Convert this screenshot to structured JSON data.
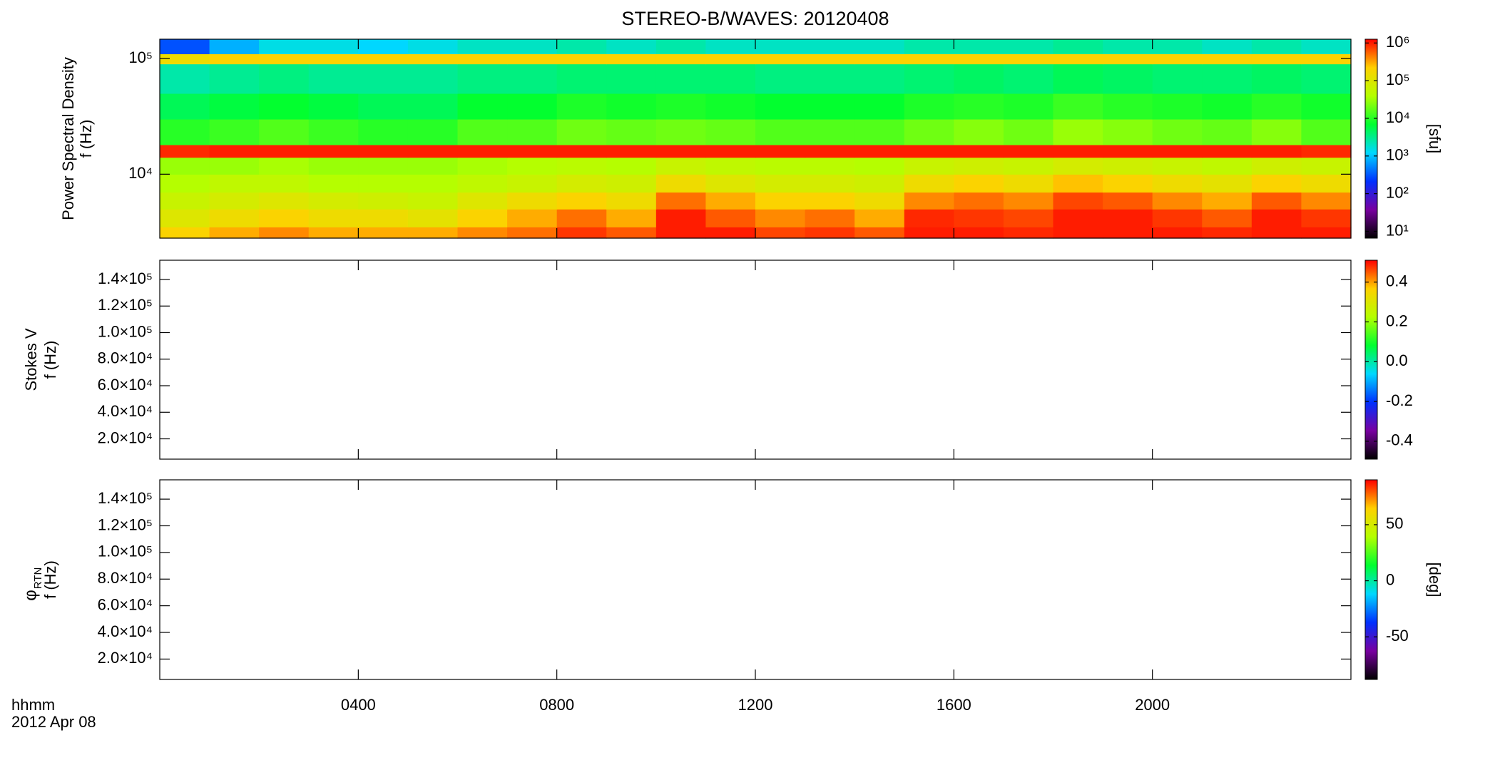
{
  "chart_data": [
    {
      "type": "heatmap",
      "title": "STEREO-B/WAVES: 20120408",
      "quantity": "Power Spectral Density",
      "ylabel": "f (Hz)",
      "colorbar_label": "[sfu]",
      "xlim": [
        0,
        24
      ],
      "ylim": [
        2800,
        147000
      ],
      "ylog": true,
      "yticks": [
        {
          "value": 10000,
          "label": "10⁴"
        },
        {
          "value": 100000,
          "label": "10⁵"
        }
      ],
      "zlim": [
        6.6,
        1260000
      ],
      "zlog": true,
      "zticks": [
        {
          "value": 10,
          "label": "10¹"
        },
        {
          "value": 100,
          "label": "10²"
        },
        {
          "value": 1000,
          "label": "10³"
        },
        {
          "value": 10000,
          "label": "10⁴"
        },
        {
          "value": 100000,
          "label": "10⁵"
        },
        {
          "value": 1000000,
          "label": "10⁶"
        }
      ],
      "colorscale": [
        "#000000",
        "#7800a0",
        "#0030ff",
        "#00d8ff",
        "#00ff30",
        "#b4ff00",
        "#ffd000",
        "#ff0000"
      ],
      "xbins": [
        0,
        1,
        2,
        3,
        4,
        5,
        6,
        7,
        8,
        9,
        10,
        11,
        12,
        13,
        14,
        15,
        16,
        17,
        18,
        19,
        20,
        21,
        22,
        23,
        24
      ],
      "ybins": [
        2800,
        3500,
        5000,
        7000,
        10000,
        14000,
        18000,
        30000,
        50000,
        90000,
        110000,
        147000
      ],
      "z": [
        [
          200000,
          300000,
          400000,
          300000,
          300000,
          300000,
          400000,
          500000,
          800000,
          600000,
          1000000,
          1000000,
          700000,
          800000,
          600000,
          1000000,
          1000000,
          900000,
          1000000,
          1000000,
          1000000,
          900000,
          1000000,
          1000000
        ],
        [
          100000,
          150000,
          200000,
          150000,
          150000,
          120000,
          200000,
          300000,
          500000,
          300000,
          1000000,
          600000,
          400000,
          500000,
          300000,
          900000,
          800000,
          700000,
          1000000,
          1000000,
          800000,
          600000,
          1000000,
          800000
        ],
        [
          60000,
          80000,
          100000,
          80000,
          70000,
          60000,
          100000,
          150000,
          200000,
          150000,
          500000,
          300000,
          200000,
          200000,
          150000,
          400000,
          500000,
          400000,
          700000,
          600000,
          400000,
          300000,
          600000,
          400000
        ],
        [
          40000,
          50000,
          50000,
          40000,
          40000,
          40000,
          50000,
          60000,
          80000,
          70000,
          150000,
          100000,
          80000,
          80000,
          70000,
          150000,
          200000,
          150000,
          250000,
          200000,
          150000,
          120000,
          200000,
          150000
        ],
        [
          30000,
          30000,
          35000,
          30000,
          30000,
          30000,
          35000,
          40000,
          45000,
          40000,
          60000,
          50000,
          45000,
          45000,
          40000,
          60000,
          70000,
          60000,
          80000,
          70000,
          60000,
          50000,
          70000,
          60000
        ],
        [
          900000,
          1000000,
          1000000,
          1000000,
          1000000,
          1000000,
          1000000,
          1000000,
          1000000,
          1000000,
          1000000,
          1000000,
          1000000,
          1000000,
          1000000,
          1000000,
          1000000,
          1000000,
          1000000,
          1000000,
          1000000,
          1000000,
          1000000,
          900000
        ],
        [
          10000,
          12000,
          15000,
          12000,
          10000,
          10000,
          15000,
          15000,
          20000,
          18000,
          20000,
          18000,
          15000,
          15000,
          15000,
          20000,
          25000,
          20000,
          30000,
          25000,
          20000,
          18000,
          25000,
          15000
        ],
        [
          5000,
          6000,
          7000,
          6000,
          5000,
          5000,
          7000,
          7000,
          9000,
          8000,
          9000,
          8000,
          7000,
          7000,
          7000,
          9000,
          10000,
          9000,
          12000,
          10000,
          9000,
          8000,
          10000,
          8000
        ],
        [
          2500,
          3000,
          3500,
          3000,
          3000,
          3000,
          3500,
          3500,
          4000,
          4000,
          4000,
          4000,
          3500,
          3500,
          3500,
          4000,
          4500,
          4000,
          5000,
          4500,
          4000,
          4000,
          4500,
          4000
        ],
        [
          150000,
          200000,
          200000,
          200000,
          200000,
          200000,
          200000,
          200000,
          200000,
          200000,
          200000,
          200000,
          200000,
          200000,
          200000,
          200000,
          200000,
          200000,
          200000,
          200000,
          200000,
          200000,
          200000,
          200000
        ],
        [
          300,
          800,
          1500,
          1500,
          1200,
          1500,
          2000,
          2000,
          2500,
          2000,
          2500,
          2000,
          2000,
          2000,
          2000,
          2500,
          2500,
          2500,
          3000,
          2500,
          2500,
          2000,
          2500,
          2000
        ]
      ]
    },
    {
      "type": "heatmap",
      "quantity": "Stokes V",
      "ylabel": "f (Hz)",
      "xlim": [
        0,
        24
      ],
      "ylim": [
        4700,
        154500
      ],
      "yticks": [
        {
          "value": 20000,
          "label": "2.0×10⁴"
        },
        {
          "value": 40000,
          "label": "4.0×10⁴"
        },
        {
          "value": 60000,
          "label": "6.0×10⁴"
        },
        {
          "value": 80000,
          "label": "8.0×10⁴"
        },
        {
          "value": 100000,
          "label": "1.0×10⁵"
        },
        {
          "value": 120000,
          "label": "1.2×10⁵"
        },
        {
          "value": 140000,
          "label": "1.4×10⁵"
        }
      ],
      "zlim": [
        -0.49,
        0.51
      ],
      "zticks": [
        -0.4,
        -0.2,
        {
          "value": 0,
          "label": "0.0"
        },
        0.2,
        0.4
      ],
      "colorscale": [
        "#000000",
        "#7800a0",
        "#0030ff",
        "#00d8ff",
        "#00ff30",
        "#b4ff00",
        "#ffd000",
        "#ff0000"
      ]
    },
    {
      "type": "heatmap",
      "quantity": {
        "symbol": "φ",
        "subscript": "RTN"
      },
      "ylabel": "f (Hz)",
      "colorbar_label": "[deg]",
      "xlim": [
        0,
        24
      ],
      "ylim": [
        4700,
        154500
      ],
      "yticks": [
        {
          "value": 20000,
          "label": "2.0×10⁴"
        },
        {
          "value": 40000,
          "label": "4.0×10⁴"
        },
        {
          "value": 60000,
          "label": "6.0×10⁴"
        },
        {
          "value": 80000,
          "label": "8.0×10⁴"
        },
        {
          "value": 100000,
          "label": "1.0×10⁵"
        },
        {
          "value": 120000,
          "label": "1.2×10⁵"
        },
        {
          "value": 140000,
          "label": "1.4×10⁵"
        }
      ],
      "zlim": [
        -88,
        90
      ],
      "zticks": [
        -50,
        0,
        50
      ],
      "colorscale": [
        "#000000",
        "#7800a0",
        "#0030ff",
        "#00d8ff",
        "#00ff30",
        "#b4ff00",
        "#ffd000",
        "#ff0000"
      ],
      "xticks": [
        {
          "value": 4,
          "label": "0400"
        },
        {
          "value": 8,
          "label": "0800"
        },
        {
          "value": 12,
          "label": "1200"
        },
        {
          "value": 16,
          "label": "1600"
        },
        {
          "value": 20,
          "label": "2000"
        }
      ],
      "xlabel": "hhmm",
      "date": "2012 Apr 08"
    }
  ]
}
